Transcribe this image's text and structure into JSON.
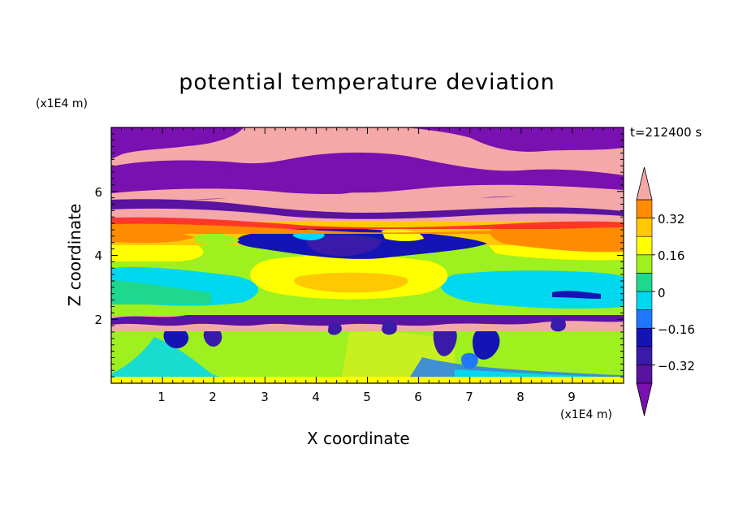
{
  "chart_data": {
    "type": "heatmap",
    "title": "potential temperature deviation",
    "time_label": "t=212400 s",
    "xlabel": "X coordinate",
    "ylabel": "Z coordinate",
    "x_unit": "(x1E4 m)",
    "y_unit": "(x1E4 m)",
    "xlim": [
      0,
      10
    ],
    "ylim": [
      0,
      8
    ],
    "x_ticks": [
      "1",
      "2",
      "3",
      "4",
      "5",
      "6",
      "7",
      "8",
      "9"
    ],
    "y_ticks": [
      "2",
      "4",
      "6"
    ],
    "colorbar": {
      "levels": [
        -0.4,
        -0.32,
        -0.24,
        -0.16,
        -0.08,
        0,
        0.08,
        0.16,
        0.24,
        0.32,
        0.4
      ],
      "colors": [
        "#5a12a0",
        "#3a1aa8",
        "#1414b4",
        "#1e78ff",
        "#00d8f0",
        "#1ed890",
        "#9ef01e",
        "#ffff00",
        "#ffc800",
        "#ff8c00",
        "#ff2828"
      ],
      "over_color": "#f5a8a8",
      "under_color": "#7a10b0",
      "labels": [
        "0.32",
        "0.16",
        "0",
        "−0.16",
        "−0.32"
      ],
      "label_values": [
        0.32,
        0.16,
        0,
        -0.16,
        -0.32
      ]
    },
    "bands": [
      {
        "z_top": 8.0,
        "z_bottom": 5.6,
        "field": "alternating > 0.4 / < -0.4 layers"
      },
      {
        "z_top": 5.6,
        "z_bottom": 4.4,
        "field": "0.24 to 0.32 with cold eddies to -0.4"
      },
      {
        "z_top": 4.4,
        "z_bottom": 2.2,
        "field": "-0.08 to 0.24, warm core near x=4.5"
      },
      {
        "z_top": 2.2,
        "z_bottom": 1.6,
        "field": "shear layer, > 0.4 and < -0.4 eddies"
      },
      {
        "z_top": 1.6,
        "z_bottom": 0.0,
        "field": "0.04 to 0.08 with cold eddies"
      }
    ]
  }
}
